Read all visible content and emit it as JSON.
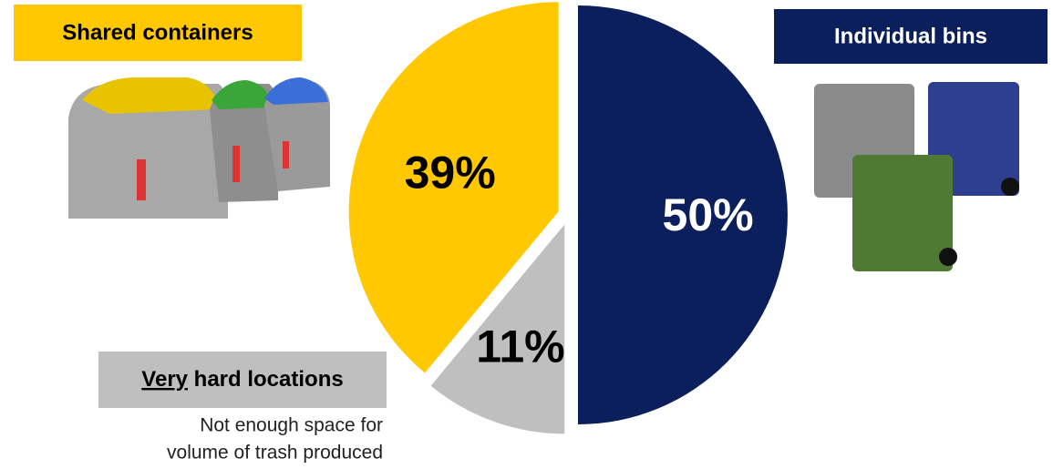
{
  "chart_data": {
    "type": "pie",
    "categories": [
      "Individual bins",
      "Very hard locations",
      "Shared containers"
    ],
    "values": [
      50,
      11,
      39
    ],
    "value_labels": [
      "50%",
      "11%",
      "39%"
    ],
    "colors": [
      "#0b1f5c",
      "#bfbfbf",
      "#ffc800"
    ],
    "start_angle": 0,
    "direction": "clockwise",
    "annotation": [
      "Not enough space for",
      "volume of trash produced"
    ]
  }
}
